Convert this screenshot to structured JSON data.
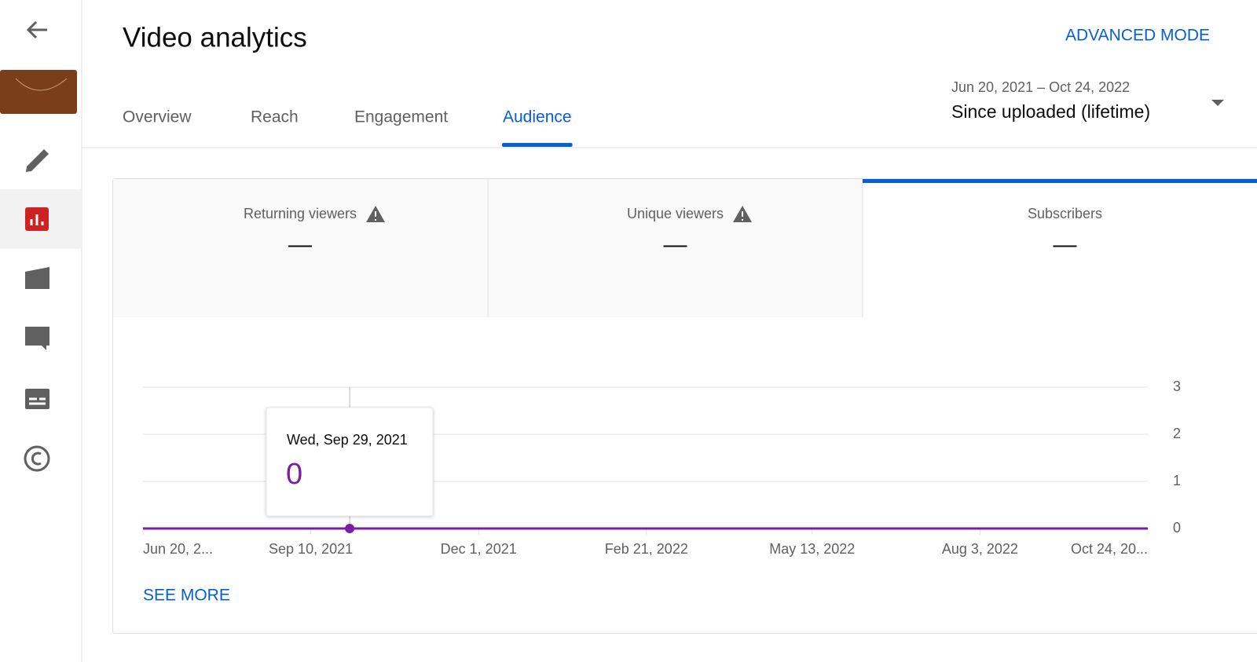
{
  "header": {
    "title": "Video analytics",
    "advanced_mode": "ADVANCED MODE"
  },
  "tabs": [
    "Overview",
    "Reach",
    "Engagement",
    "Audience"
  ],
  "active_tab": 3,
  "date_range": {
    "range": "Jun 20, 2021 – Oct 24, 2022",
    "label": "Since uploaded (lifetime)"
  },
  "metrics": [
    {
      "label": "Returning viewers",
      "value": "—",
      "warning": true
    },
    {
      "label": "Unique viewers",
      "value": "—",
      "warning": true
    },
    {
      "label": "Subscribers",
      "value": "—",
      "warning": false
    }
  ],
  "selected_metric": 2,
  "chart_data": {
    "type": "line",
    "x": [
      "2021-06-20",
      "2022-10-24"
    ],
    "values": [
      0,
      0
    ],
    "color": "#7b1fa2",
    "xlim": [
      "2021-06-20",
      "2022-10-24"
    ],
    "xticks": [
      {
        "value": "2021-06-20",
        "label": "Jun 20, 2..."
      },
      {
        "value": "2021-09-10",
        "label": "Sep 10, 2021"
      },
      {
        "value": "2021-12-01",
        "label": "Dec 1, 2021"
      },
      {
        "value": "2022-02-21",
        "label": "Feb 21, 2022"
      },
      {
        "value": "2022-05-13",
        "label": "May 13, 2022"
      },
      {
        "value": "2022-08-03",
        "label": "Aug 3, 2022"
      },
      {
        "value": "2022-10-24",
        "label": "Oct 24, 20..."
      }
    ],
    "ylim": [
      0,
      3
    ],
    "yticks": [
      0,
      1,
      2,
      3
    ],
    "grid": true,
    "tooltip": {
      "x": {
        "value": "2021-09-29",
        "label": "Wed, Sep 29, 2021"
      },
      "value": 0
    }
  },
  "see_more": "SEE MORE"
}
